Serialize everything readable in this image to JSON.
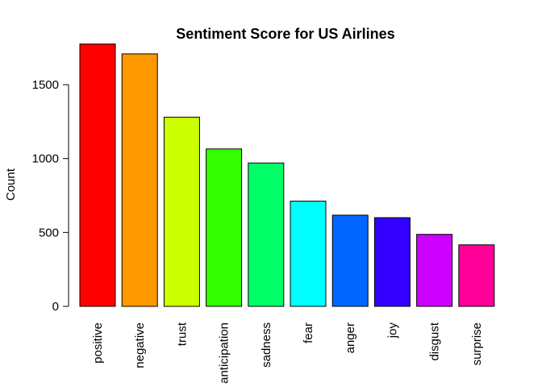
{
  "chart_data": {
    "type": "bar",
    "title": "Sentiment Score for US Airlines",
    "xlabel": "",
    "ylabel": "Count",
    "categories": [
      "positive",
      "negative",
      "trust",
      "anticipation",
      "sadness",
      "fear",
      "anger",
      "joy",
      "disgust",
      "surprise"
    ],
    "values": [
      1775,
      1708,
      1280,
      1065,
      970,
      712,
      617,
      600,
      487,
      416
    ],
    "colors": [
      "#FF0000",
      "#FF9900",
      "#CCFF00",
      "#33FF00",
      "#00FF66",
      "#00FFFF",
      "#0066FF",
      "#3300FF",
      "#CC00FF",
      "#FF0099"
    ],
    "ylim": [
      0,
      1800
    ],
    "yticks": [
      0,
      500,
      1000,
      1500
    ],
    "grid": false,
    "legend": "none"
  }
}
